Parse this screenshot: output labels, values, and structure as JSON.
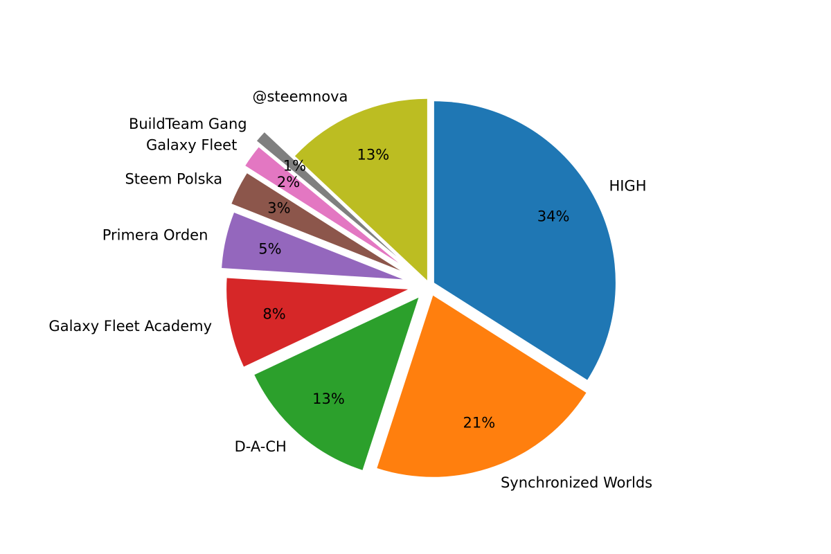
{
  "chart_data": {
    "type": "pie",
    "title": "",
    "start_angle_deg": 90,
    "direction": "clockwise",
    "slices": [
      {
        "label": "HIGH",
        "pct_label": "34%",
        "value": 34,
        "color": "#1f77b4",
        "explode": 0.03
      },
      {
        "label": "Synchronized Worlds",
        "pct_label": "21%",
        "value": 21,
        "color": "#ff7f0e",
        "explode": 0.06
      },
      {
        "label": "D-A-CH",
        "pct_label": "13%",
        "value": 13,
        "color": "#2ca02c",
        "explode": 0.09
      },
      {
        "label": "Galaxy Fleet Academy",
        "pct_label": "8%",
        "value": 8,
        "color": "#d62728",
        "explode": 0.12
      },
      {
        "label": "Primera Orden",
        "pct_label": "5%",
        "value": 5,
        "color": "#9467bd",
        "explode": 0.15
      },
      {
        "label": "Steem Polska",
        "pct_label": "3%",
        "value": 3,
        "color": "#8c564b",
        "explode": 0.18
      },
      {
        "label": "Galaxy Fleet",
        "pct_label": "2%",
        "value": 2,
        "color": "#e377c2",
        "explode": 0.21
      },
      {
        "label": "BuildTeam Gang",
        "pct_label": "1%",
        "value": 1,
        "color": "#7f7f7f",
        "explode": 0.24
      },
      {
        "label": "@steemnova",
        "pct_label": "13%",
        "value": 13,
        "color": "#bcbd22",
        "explode": 0.03
      }
    ]
  }
}
